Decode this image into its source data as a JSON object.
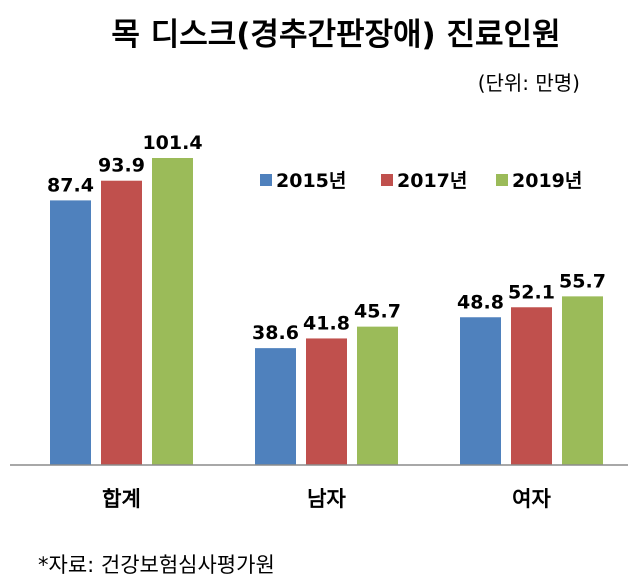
{
  "title": "목 디스크(경추간판장애) 진료인원",
  "unit_label": "(단위: 만명)",
  "source_note": "*자료: 건강보험심사평가원",
  "chart_data": {
    "type": "bar",
    "title": "목 디스크(경추간판장애) 진료인원",
    "xlabel": "",
    "ylabel": "",
    "unit": "만명",
    "categories": [
      "합계",
      "남자",
      "여자"
    ],
    "series": [
      {
        "name": "2015년",
        "color": "#4F81BD",
        "values": [
          87.4,
          38.6,
          48.8
        ]
      },
      {
        "name": "2017년",
        "color": "#C0504D",
        "values": [
          93.9,
          41.8,
          52.1
        ]
      },
      {
        "name": "2019년",
        "color": "#9BBB59",
        "values": [
          101.4,
          45.7,
          55.7
        ]
      }
    ],
    "value_labels": [
      [
        "87.4",
        "38.6",
        "48.8"
      ],
      [
        "93.9",
        "41.8",
        "52.1"
      ],
      [
        "101.4",
        "45.7",
        "55.7"
      ]
    ],
    "ylim": [
      0,
      101.4
    ],
    "grid": false,
    "legend_position": "top-right"
  }
}
